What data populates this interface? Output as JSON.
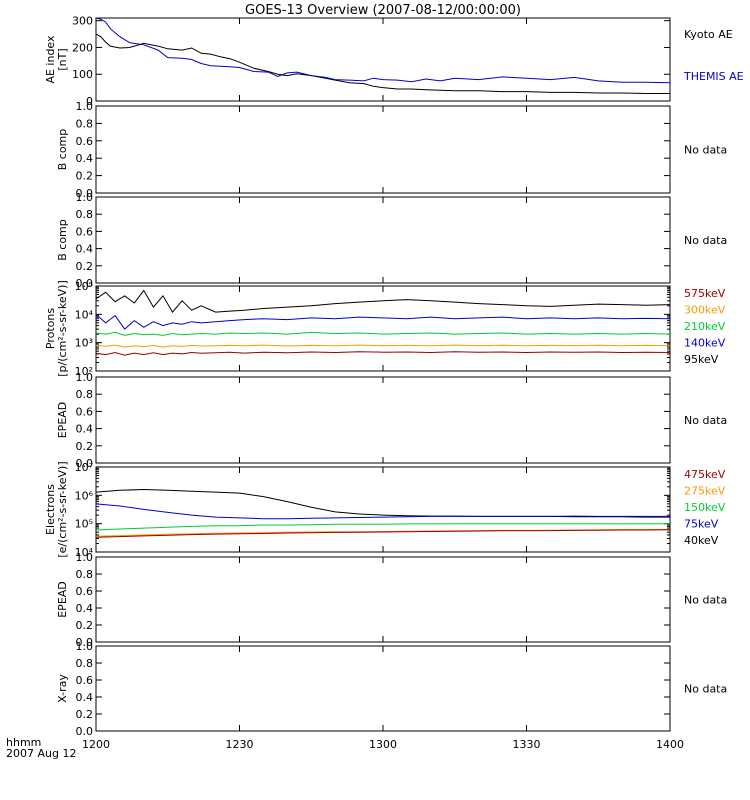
{
  "title": "GOES-13 Overview (2007-08-12/00:00:00)",
  "chart_data": [
    {
      "id": "ae",
      "type": "line",
      "scale": "linear",
      "ylabel": [
        "AE index",
        "[nT]"
      ],
      "ylim": [
        0,
        310
      ],
      "yticks": [
        0,
        100,
        200,
        300
      ],
      "ytick_labels": [
        "0",
        "100",
        "200",
        "300"
      ],
      "x_minutes": [
        0,
        1,
        2,
        3,
        5,
        7,
        10,
        13,
        15,
        18,
        20,
        22,
        24,
        26,
        28,
        30,
        33,
        36,
        38,
        40,
        42,
        45,
        48,
        50,
        53,
        56,
        58,
        60,
        63,
        66,
        69,
        72,
        75,
        80,
        85,
        90,
        95,
        100,
        105,
        110,
        115,
        120
      ],
      "series": [
        {
          "name": "Kyoto AE",
          "color": "#000000",
          "values": [
            250,
            240,
            220,
            205,
            198,
            200,
            215,
            205,
            195,
            190,
            198,
            178,
            175,
            165,
            158,
            145,
            122,
            110,
            100,
            95,
            102,
            95,
            85,
            78,
            68,
            65,
            55,
            50,
            45,
            45,
            42,
            40,
            38,
            38,
            35,
            35,
            32,
            32,
            30,
            30,
            28,
            28
          ]
        },
        {
          "name": "THEMIS AE",
          "color": "#0000cc",
          "values": [
            310,
            305,
            295,
            270,
            240,
            218,
            210,
            190,
            162,
            160,
            155,
            140,
            132,
            130,
            128,
            125,
            110,
            108,
            92,
            105,
            108,
            95,
            88,
            80,
            78,
            75,
            85,
            80,
            78,
            72,
            82,
            75,
            85,
            80,
            90,
            85,
            80,
            88,
            75,
            70,
            70,
            68
          ]
        }
      ]
    },
    {
      "id": "bcomp1",
      "type": "line",
      "scale": "linear",
      "ylabel": [
        "B comp"
      ],
      "ylim": [
        0,
        1
      ],
      "yticks": [
        0,
        0.2,
        0.4,
        0.6,
        0.8,
        1.0
      ],
      "ytick_labels": [
        "0.0",
        "0.2",
        "0.4",
        "0.6",
        "0.8",
        "1.0"
      ],
      "series": [],
      "note": "No data"
    },
    {
      "id": "bcomp2",
      "type": "line",
      "scale": "linear",
      "ylabel": [
        "B comp"
      ],
      "ylim": [
        0,
        1
      ],
      "yticks": [
        0,
        0.2,
        0.4,
        0.6,
        0.8,
        1.0
      ],
      "ytick_labels": [
        "0.0",
        "0.2",
        "0.4",
        "0.6",
        "0.8",
        "1.0"
      ],
      "series": [],
      "note": "No data"
    },
    {
      "id": "protons",
      "type": "line",
      "scale": "log",
      "ylabel": [
        "Protons",
        "[p/(cm²-s-sr-keV)]"
      ],
      "ylim": [
        100,
        100000
      ],
      "yticks": [
        100,
        1000,
        10000,
        100000
      ],
      "ytick_labels": [
        "10²",
        "10³",
        "10⁴",
        "10⁵"
      ],
      "x_minutes": [
        0,
        2,
        4,
        6,
        8,
        10,
        12,
        14,
        16,
        18,
        20,
        22,
        25,
        28,
        31,
        35,
        40,
        45,
        50,
        55,
        60,
        65,
        70,
        75,
        80,
        85,
        90,
        95,
        100,
        105,
        110,
        115,
        120
      ],
      "series": [
        {
          "name": "95keV",
          "color": "#000000",
          "values": [
            35000,
            60000,
            28000,
            45000,
            25000,
            70000,
            18000,
            45000,
            12000,
            30000,
            14000,
            20000,
            12000,
            13000,
            14000,
            16000,
            18000,
            20000,
            24000,
            27000,
            30000,
            33000,
            30000,
            27000,
            24000,
            22000,
            20000,
            19000,
            21000,
            23000,
            22000,
            21000,
            22000
          ]
        },
        {
          "name": "140keV",
          "color": "#0000cc",
          "values": [
            10000,
            5000,
            9000,
            3000,
            6000,
            3500,
            5500,
            4000,
            5000,
            4500,
            5500,
            5000,
            5500,
            6000,
            6500,
            7000,
            6500,
            7500,
            7000,
            8000,
            7500,
            7000,
            8000,
            7000,
            7500,
            8000,
            7000,
            7500,
            7000,
            7500,
            7000,
            7200,
            7000
          ]
        },
        {
          "name": "210keV",
          "color": "#00cc33",
          "values": [
            2200,
            2000,
            2300,
            1800,
            2100,
            1900,
            2000,
            1800,
            2100,
            1900,
            2000,
            2100,
            2000,
            2200,
            2100,
            2200,
            2000,
            2300,
            2100,
            2200,
            2000,
            2100,
            2200,
            2000,
            2100,
            2200,
            2000,
            2100,
            2000,
            2100,
            2000,
            2100,
            2000
          ]
        },
        {
          "name": "300keV",
          "color": "#ff9900",
          "values": [
            800,
            750,
            820,
            700,
            780,
            720,
            800,
            700,
            780,
            740,
            800,
            760,
            780,
            800,
            780,
            820,
            760,
            800,
            780,
            820,
            790,
            800,
            780,
            820,
            790,
            810,
            780,
            800,
            790,
            810,
            780,
            800,
            780
          ]
        },
        {
          "name": "575keV",
          "color": "#990000",
          "values": [
            420,
            380,
            450,
            360,
            430,
            380,
            440,
            380,
            430,
            400,
            450,
            420,
            440,
            460,
            430,
            460,
            440,
            470,
            450,
            480,
            460,
            470,
            450,
            480,
            460,
            470,
            450,
            470,
            460,
            470,
            450,
            460,
            450
          ]
        }
      ]
    },
    {
      "id": "epead1",
      "type": "line",
      "scale": "linear",
      "ylabel": [
        "EPEAD"
      ],
      "ylim": [
        0,
        1
      ],
      "yticks": [
        0,
        0.2,
        0.4,
        0.6,
        0.8,
        1.0
      ],
      "ytick_labels": [
        "0.0",
        "0.2",
        "0.4",
        "0.6",
        "0.8",
        "1.0"
      ],
      "series": [],
      "note": "No data"
    },
    {
      "id": "electrons",
      "type": "line",
      "scale": "log",
      "ylabel": [
        "Electrons",
        "[e/(cm²-s-sr-keV)]"
      ],
      "ylim": [
        10000,
        10000000
      ],
      "yticks": [
        10000,
        100000,
        1000000,
        10000000
      ],
      "ytick_labels": [
        "10⁴",
        "10⁵",
        "10⁶",
        "10⁷"
      ],
      "x_minutes": [
        0,
        5,
        10,
        15,
        20,
        25,
        30,
        35,
        40,
        45,
        50,
        55,
        60,
        65,
        70,
        75,
        80,
        85,
        90,
        95,
        100,
        105,
        110,
        115,
        120
      ],
      "series": [
        {
          "name": "40keV",
          "color": "#000000",
          "values": [
            1300000,
            1500000,
            1600000,
            1500000,
            1400000,
            1300000,
            1200000,
            900000,
            600000,
            380000,
            260000,
            220000,
            200000,
            190000,
            185000,
            185000,
            180000,
            180000,
            180000,
            180000,
            175000,
            175000,
            175000,
            170000,
            170000
          ]
        },
        {
          "name": "75keV",
          "color": "#0000cc",
          "values": [
            500000,
            420000,
            320000,
            250000,
            200000,
            170000,
            160000,
            150000,
            150000,
            155000,
            160000,
            165000,
            170000,
            175000,
            180000,
            180000,
            180000,
            180000,
            180000,
            180000,
            185000,
            180000,
            180000,
            180000,
            180000
          ]
        },
        {
          "name": "150keV",
          "color": "#00cc33",
          "values": [
            60000,
            65000,
            70000,
            75000,
            80000,
            85000,
            85000,
            90000,
            90000,
            92000,
            95000,
            95000,
            95000,
            98000,
            98000,
            100000,
            100000,
            100000,
            100000,
            100000,
            100000,
            100000,
            98000,
            100000,
            100000
          ]
        },
        {
          "name": "275keV",
          "color": "#ff9900",
          "values": [
            36000,
            38000,
            40000,
            42000,
            44000,
            46000,
            47000,
            48000,
            50000,
            51000,
            52000,
            52000,
            53000,
            54000,
            55000,
            56000,
            57000,
            58000,
            58000,
            59000,
            60000,
            61000,
            62000,
            62000,
            63000
          ]
        },
        {
          "name": "475keV",
          "color": "#990000",
          "values": [
            33000,
            35000,
            37000,
            39000,
            41000,
            43000,
            44000,
            45000,
            47000,
            48000,
            49000,
            50000,
            51000,
            52000,
            53000,
            54000,
            55000,
            56000,
            56000,
            57000,
            58000,
            59000,
            60000,
            60000,
            61000
          ]
        }
      ]
    },
    {
      "id": "epead2",
      "type": "line",
      "scale": "linear",
      "ylabel": [
        "EPEAD"
      ],
      "ylim": [
        0,
        1
      ],
      "yticks": [
        0,
        0.2,
        0.4,
        0.6,
        0.8,
        1.0
      ],
      "ytick_labels": [
        "0.0",
        "0.2",
        "0.4",
        "0.6",
        "0.8",
        "1.0"
      ],
      "series": [],
      "note": "No data"
    },
    {
      "id": "xray",
      "type": "line",
      "scale": "linear",
      "ylabel": [
        "X-ray"
      ],
      "ylim": [
        0,
        1
      ],
      "yticks": [
        0,
        0.2,
        0.4,
        0.6,
        0.8,
        1.0
      ],
      "ytick_labels": [
        "0.0",
        "0.2",
        "0.4",
        "0.6",
        "0.8",
        "1.0"
      ],
      "series": [],
      "note": "No data"
    }
  ],
  "xaxis": {
    "range_minutes": [
      0,
      120
    ],
    "ticks_minutes": [
      0,
      30,
      60,
      90,
      120
    ],
    "tick_labels": [
      "1200",
      "1230",
      "1300",
      "1330",
      "1400"
    ],
    "label_lines": [
      "hhmm",
      "2007 Aug 12"
    ]
  },
  "colors": {
    "axis": "#000000",
    "background": "#ffffff"
  }
}
